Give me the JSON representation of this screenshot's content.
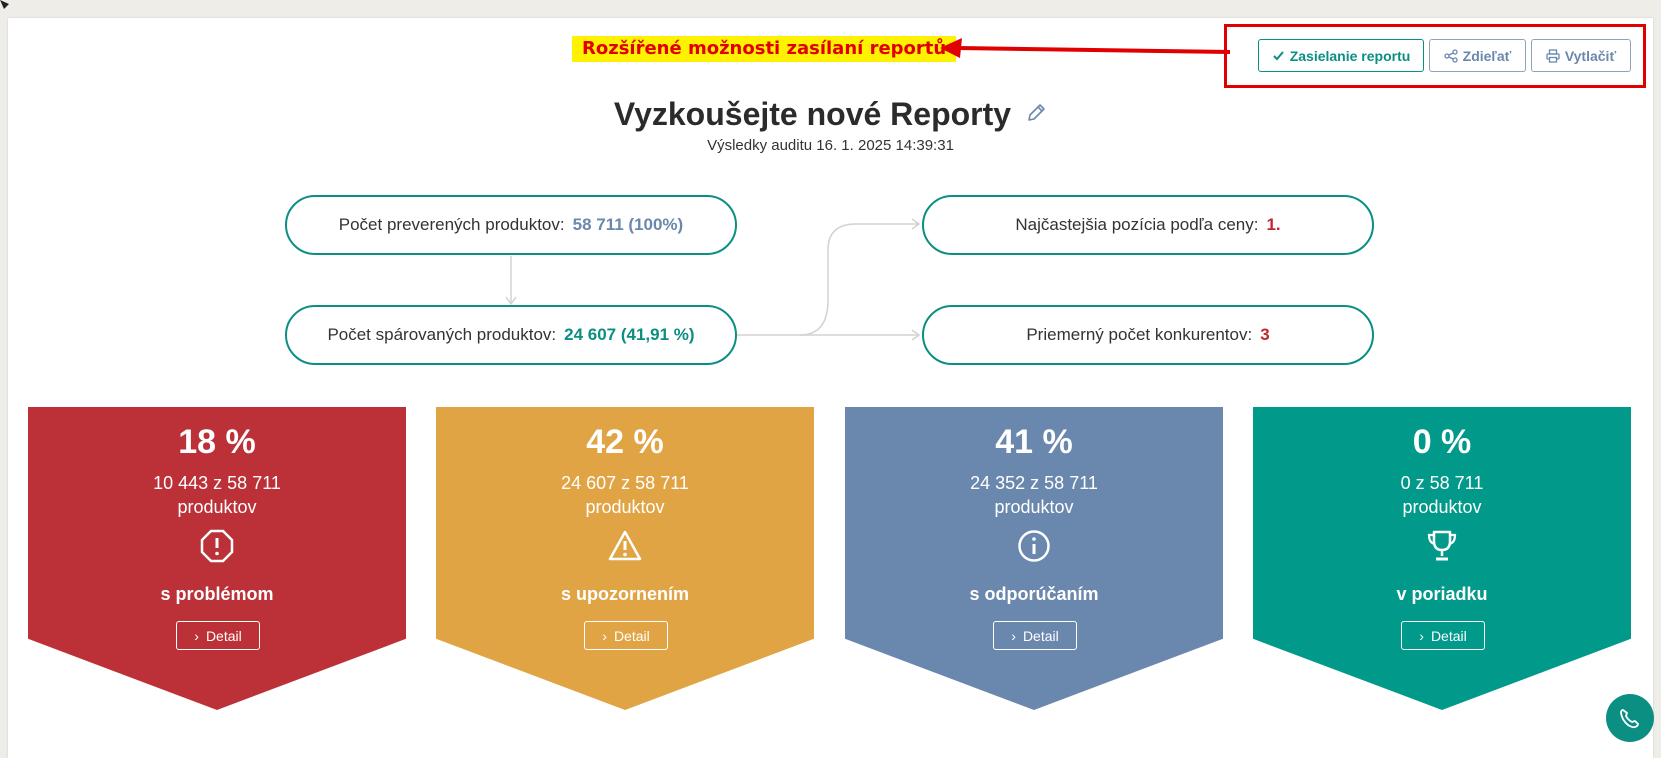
{
  "annotation": {
    "text": "Rozšířené možnosti zasílaní reportů",
    "color": "#e00000",
    "highlight": "#fff200"
  },
  "toolbar": {
    "send_label": "Zasielanie reportu",
    "share_label": "Zdieľať",
    "print_label": "Vytlačiť",
    "accent": "#0b8f83"
  },
  "header": {
    "title": "Vyzkoušejte nové Reporty",
    "subtitle": "Výsledky auditu 16. 1. 2025 14:39:31"
  },
  "flow": {
    "checked_label": "Počet preverených produktov:",
    "checked_value": "58 711 (100%)",
    "paired_label": "Počet spárovaných produktov:",
    "paired_value": "24 607 (41,91 %)",
    "position_label": "Najčastejšia pozícia podľa ceny:",
    "position_value": "1.",
    "competitors_label": "Priemerný počet konkurentov:",
    "competitors_value": "3"
  },
  "stats": [
    {
      "pct": "18 %",
      "count": "10 443 z 58 711",
      "unit": "produktov",
      "label": "s problémom",
      "icon": "octagon-alert-icon",
      "color": "#bb3137",
      "detail": "Detail"
    },
    {
      "pct": "42 %",
      "count": "24 607 z 58 711",
      "unit": "produktov",
      "label": "s upozornením",
      "icon": "warning-triangle-icon",
      "color": "#e0a445",
      "detail": "Detail"
    },
    {
      "pct": "41 %",
      "count": "24 352 z 58 711",
      "unit": "produktov",
      "label": "s odporúčaním",
      "icon": "info-circle-icon",
      "color": "#6a87ad",
      "detail": "Detail"
    },
    {
      "pct": "0 %",
      "count": "0 z 58 711",
      "unit": "produktov",
      "label": "v poriadku",
      "icon": "trophy-icon",
      "color": "#00998a",
      "detail": "Detail"
    }
  ],
  "colors": {
    "value_blue": "#6a87ad",
    "value_green": "#0b8f83",
    "value_red": "#c0282e"
  }
}
